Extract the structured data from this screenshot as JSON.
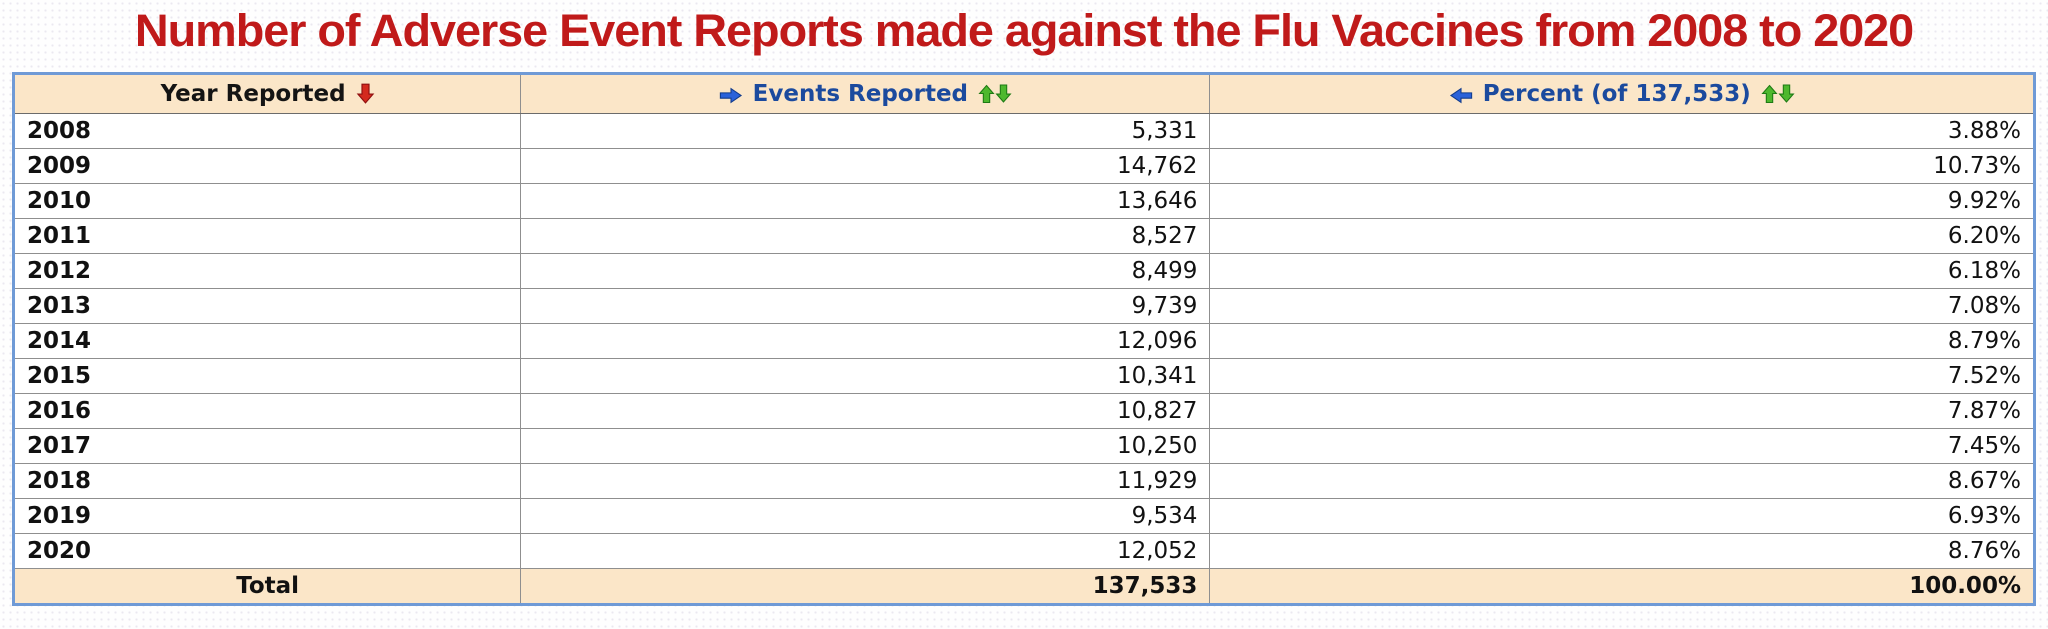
{
  "title": "Number of Adverse Event Reports made against the Flu Vaccines from 2008 to 2020",
  "colors": {
    "title_red": "#c01a1a",
    "header_background": "#fbe6c8",
    "header_blue_text": "#1b4a9e",
    "table_border_blue": "#6f9ad6",
    "grid_line_gray": "#8f8f8f",
    "sort_red_arrow": "#d42a1e",
    "sort_green_arrow": "#4db82e",
    "nav_blue_arrow": "#2b62d9"
  },
  "table": {
    "columns": [
      {
        "label": "Year Reported"
      },
      {
        "label": "Events Reported"
      },
      {
        "label": "Percent (of 137,533)"
      }
    ],
    "rows": [
      {
        "year": "2008",
        "events": "5,331",
        "percent": "3.88%"
      },
      {
        "year": "2009",
        "events": "14,762",
        "percent": "10.73%"
      },
      {
        "year": "2010",
        "events": "13,646",
        "percent": "9.92%"
      },
      {
        "year": "2011",
        "events": "8,527",
        "percent": "6.20%"
      },
      {
        "year": "2012",
        "events": "8,499",
        "percent": "6.18%"
      },
      {
        "year": "2013",
        "events": "9,739",
        "percent": "7.08%"
      },
      {
        "year": "2014",
        "events": "12,096",
        "percent": "8.79%"
      },
      {
        "year": "2015",
        "events": "10,341",
        "percent": "7.52%"
      },
      {
        "year": "2016",
        "events": "10,827",
        "percent": "7.87%"
      },
      {
        "year": "2017",
        "events": "10,250",
        "percent": "7.45%"
      },
      {
        "year": "2018",
        "events": "11,929",
        "percent": "8.67%"
      },
      {
        "year": "2019",
        "events": "9,534",
        "percent": "6.93%"
      },
      {
        "year": "2020",
        "events": "12,052",
        "percent": "8.76%"
      }
    ],
    "total": {
      "label": "Total",
      "events": "137,533",
      "percent": "100.00%"
    }
  },
  "chart_data": {
    "type": "table",
    "title": "Number of Adverse Event Reports made against the Flu Vaccines from 2008 to 2020",
    "categories": [
      "2008",
      "2009",
      "2010",
      "2011",
      "2012",
      "2013",
      "2014",
      "2015",
      "2016",
      "2017",
      "2018",
      "2019",
      "2020"
    ],
    "series": [
      {
        "name": "Events Reported",
        "values": [
          5331,
          14762,
          13646,
          8527,
          8499,
          9739,
          12096,
          10341,
          10827,
          10250,
          11929,
          9534,
          12052
        ]
      },
      {
        "name": "Percent (of 137,533)",
        "values": [
          3.88,
          10.73,
          9.92,
          6.2,
          6.18,
          7.08,
          8.79,
          7.52,
          7.87,
          7.45,
          8.67,
          6.93,
          8.76
        ]
      }
    ],
    "total": {
      "events": 137533,
      "percent": 100.0
    }
  }
}
